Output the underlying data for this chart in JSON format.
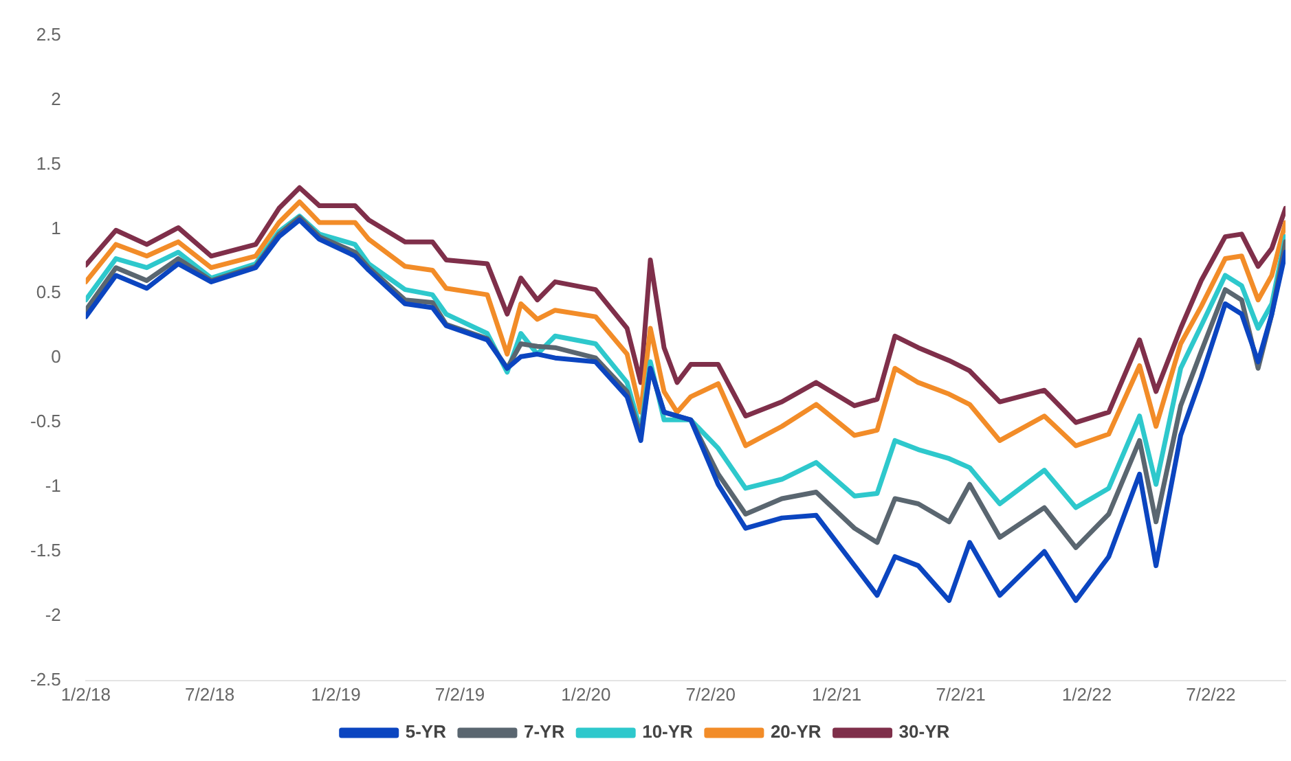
{
  "chart_data": {
    "type": "line",
    "x": [
      "2018-01-02",
      "2018-02-15",
      "2018-04-01",
      "2018-05-17",
      "2018-07-04",
      "2018-09-07",
      "2018-10-11",
      "2018-11-10",
      "2018-12-09",
      "2019-01-30",
      "2019-02-19",
      "2019-04-13",
      "2019-05-23",
      "2019-06-12",
      "2019-08-11",
      "2019-09-09",
      "2019-09-29",
      "2019-10-23",
      "2019-11-18",
      "2020-01-16",
      "2020-03-02",
      "2020-03-22",
      "2020-04-05",
      "2020-04-25",
      "2020-05-14",
      "2020-06-03",
      "2020-07-13",
      "2020-08-22",
      "2020-10-14",
      "2020-12-03",
      "2021-01-28",
      "2021-03-02",
      "2021-03-28",
      "2021-05-01",
      "2021-06-15",
      "2021-07-15",
      "2021-08-28",
      "2021-11-01",
      "2021-12-17",
      "2022-02-03",
      "2022-03-20",
      "2022-04-13",
      "2022-05-19",
      "2022-06-18",
      "2022-07-23",
      "2022-08-16",
      "2022-09-09",
      "2022-09-29",
      "2022-10-19"
    ],
    "series": [
      {
        "name": "5-YR",
        "color": "#0b45c0",
        "values": [
          0.32,
          0.64,
          0.54,
          0.73,
          0.59,
          0.7,
          0.94,
          1.07,
          0.92,
          0.79,
          0.68,
          0.42,
          0.39,
          0.25,
          0.14,
          -0.08,
          0.01,
          0.03,
          0.0,
          -0.03,
          -0.3,
          -0.64,
          -0.08,
          -0.42,
          -0.45,
          -0.48,
          -0.98,
          -1.32,
          -1.24,
          -1.22,
          -1.61,
          -1.84,
          -1.54,
          -1.61,
          -1.88,
          -1.43,
          -1.84,
          -1.5,
          -1.88,
          -1.54,
          -0.9,
          -1.61,
          -0.6,
          -0.15,
          0.42,
          0.34,
          -0.03,
          0.34,
          0.82
        ]
      },
      {
        "name": "7-YR",
        "color": "#5a6670",
        "values": [
          0.37,
          0.7,
          0.6,
          0.77,
          0.6,
          0.71,
          0.96,
          1.09,
          0.94,
          0.82,
          0.7,
          0.45,
          0.43,
          0.26,
          0.15,
          -0.08,
          0.11,
          0.09,
          0.08,
          0.0,
          -0.26,
          -0.6,
          -0.08,
          -0.42,
          -0.45,
          -0.48,
          -0.9,
          -1.21,
          -1.09,
          -1.04,
          -1.32,
          -1.43,
          -1.09,
          -1.13,
          -1.27,
          -0.98,
          -1.39,
          -1.16,
          -1.47,
          -1.21,
          -0.64,
          -1.27,
          -0.37,
          0.05,
          0.53,
          0.45,
          -0.08,
          0.34,
          0.9
        ]
      },
      {
        "name": "10-YR",
        "color": "#2ec8cc",
        "values": [
          0.45,
          0.77,
          0.7,
          0.82,
          0.62,
          0.73,
          0.98,
          1.1,
          0.96,
          0.88,
          0.73,
          0.53,
          0.49,
          0.34,
          0.19,
          -0.11,
          0.19,
          0.03,
          0.17,
          0.11,
          -0.19,
          -0.56,
          -0.03,
          -0.48,
          -0.48,
          -0.48,
          -0.7,
          -1.01,
          -0.94,
          -0.81,
          -1.07,
          -1.05,
          -0.64,
          -0.71,
          -0.78,
          -0.85,
          -1.13,
          -0.87,
          -1.16,
          -1.01,
          -0.45,
          -0.98,
          -0.08,
          0.25,
          0.64,
          0.56,
          0.23,
          0.42,
          0.94
        ]
      },
      {
        "name": "20-YR",
        "color": "#f28c28",
        "values": [
          0.59,
          0.88,
          0.79,
          0.9,
          0.7,
          0.79,
          1.05,
          1.21,
          1.05,
          1.05,
          0.92,
          0.71,
          0.68,
          0.54,
          0.49,
          0.03,
          0.42,
          0.3,
          0.37,
          0.32,
          0.03,
          -0.42,
          0.23,
          -0.26,
          -0.42,
          -0.3,
          -0.2,
          -0.68,
          -0.53,
          -0.36,
          -0.6,
          -0.56,
          -0.08,
          -0.19,
          -0.28,
          -0.36,
          -0.64,
          -0.45,
          -0.68,
          -0.59,
          -0.06,
          -0.53,
          0.11,
          0.4,
          0.77,
          0.79,
          0.45,
          0.64,
          1.05
        ]
      },
      {
        "name": "30-YR",
        "color": "#7f2f4a",
        "values": [
          0.72,
          0.99,
          0.88,
          1.01,
          0.79,
          0.88,
          1.16,
          1.32,
          1.18,
          1.18,
          1.07,
          0.9,
          0.9,
          0.76,
          0.73,
          0.34,
          0.62,
          0.45,
          0.59,
          0.53,
          0.23,
          -0.19,
          0.76,
          0.08,
          -0.19,
          -0.05,
          -0.05,
          -0.45,
          -0.34,
          -0.19,
          -0.37,
          -0.32,
          0.17,
          0.08,
          -0.02,
          -0.1,
          -0.34,
          -0.25,
          -0.5,
          -0.42,
          0.14,
          -0.26,
          0.23,
          0.6,
          0.94,
          0.96,
          0.71,
          0.85,
          1.16
        ]
      }
    ],
    "xticks": [
      {
        "value": "2018-01-02",
        "label": "1/2/18"
      },
      {
        "value": "2018-07-02",
        "label": "7/2/18"
      },
      {
        "value": "2019-01-02",
        "label": "1/2/19"
      },
      {
        "value": "2019-07-02",
        "label": "7/2/19"
      },
      {
        "value": "2020-01-02",
        "label": "1/2/20"
      },
      {
        "value": "2020-07-02",
        "label": "7/2/20"
      },
      {
        "value": "2021-01-02",
        "label": "1/2/21"
      },
      {
        "value": "2021-07-02",
        "label": "7/2/21"
      },
      {
        "value": "2022-01-02",
        "label": "1/2/22"
      },
      {
        "value": "2022-07-02",
        "label": "7/2/22"
      }
    ],
    "xlim": [
      "2018-01-02",
      "2022-10-19"
    ],
    "ylim": [
      -2.5,
      2.5
    ],
    "yticks": [
      -2.5,
      -2,
      -1.5,
      -1,
      -0.5,
      0,
      0.5,
      1,
      1.5,
      2,
      2.5
    ],
    "grid": false,
    "legend": "bottom",
    "marker": "none",
    "line_style": "solid"
  }
}
